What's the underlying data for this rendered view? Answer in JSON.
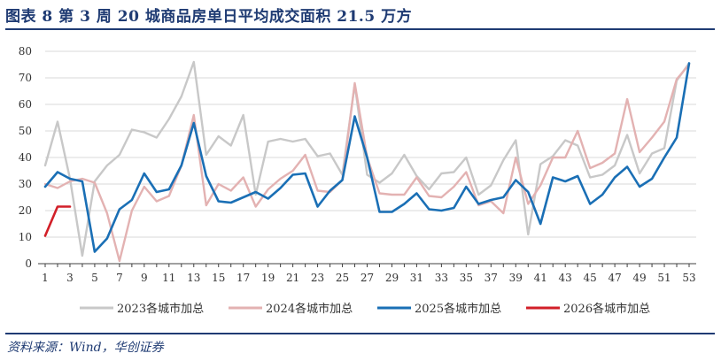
{
  "title": "图表 8   第 3 周 20 城商品房单日平均成交面积 21.5 万方",
  "source": "资料来源：Wind，华创证券",
  "colors": {
    "grid": "#d9d9d9",
    "axis": "#404040",
    "series": [
      "#c8c8c8",
      "#e3b2b2",
      "#1a6fb5",
      "#d21f28"
    ]
  },
  "chart_data": {
    "type": "line",
    "title": "第 3 周 20 城商品房单日平均成交面积 21.5 万方",
    "xlabel": "",
    "ylabel": "",
    "xlim": [
      1,
      53
    ],
    "ylim": [
      0,
      80
    ],
    "y_ticks": [
      0,
      10,
      20,
      30,
      40,
      50,
      60,
      70,
      80
    ],
    "x_ticks": [
      1,
      3,
      5,
      7,
      9,
      11,
      13,
      15,
      17,
      19,
      21,
      23,
      25,
      27,
      29,
      31,
      33,
      35,
      37,
      39,
      41,
      43,
      45,
      47,
      49,
      51,
      53
    ],
    "grid": "horizontal",
    "legend_position": "bottom",
    "series": [
      {
        "name": "2023各城市加总",
        "x_start": 1,
        "values": [
          37,
          53.5,
          32,
          3,
          31,
          37,
          41,
          50.5,
          49.5,
          47.5,
          54.5,
          63,
          76,
          41,
          48,
          44.5,
          56,
          26,
          46,
          47,
          46,
          47,
          40.5,
          41.5,
          33.5,
          67.5,
          33.5,
          30.5,
          34,
          41,
          33,
          28,
          34,
          34.5,
          40,
          26,
          29.5,
          39,
          46.5,
          11,
          37.5,
          40.5,
          46.5,
          44.5,
          32.5,
          33.5,
          37,
          48.5,
          34,
          41.5,
          43.5,
          69,
          75.5
        ]
      },
      {
        "name": "2024各城市加总",
        "x_start": 1,
        "values": [
          30,
          28.5,
          31,
          32,
          30.5,
          19,
          1,
          20,
          29,
          23.5,
          25.5,
          37,
          56,
          22,
          30,
          27.5,
          32.5,
          21.5,
          28,
          32,
          35,
          41,
          27.5,
          27,
          31.5,
          68,
          40,
          26.5,
          26,
          26,
          32.5,
          25.5,
          25,
          29,
          34.5,
          22,
          23.5,
          19,
          40,
          22.5,
          29.5,
          40,
          40,
          50,
          36,
          38,
          41.5,
          62,
          42,
          47.5,
          53.5,
          69.5,
          75
        ]
      },
      {
        "name": "2025各城市加总",
        "x_start": 1,
        "values": [
          29,
          34.5,
          32,
          31,
          4.5,
          9.5,
          20.5,
          24,
          34,
          27,
          28,
          37,
          53,
          33,
          23.5,
          23,
          25,
          27,
          24.5,
          28.5,
          33.5,
          34,
          21.5,
          27.5,
          31.5,
          55.5,
          40,
          19.5,
          19.5,
          22.5,
          26.5,
          20.5,
          20,
          21,
          29,
          22.5,
          24,
          25,
          31.5,
          27,
          15,
          32.5,
          31,
          33,
          22.5,
          26,
          32.5,
          36.5,
          29,
          32,
          40,
          47.5,
          75.5
        ]
      },
      {
        "name": "2026各城市加总",
        "x_start": 1,
        "values": [
          10.5,
          21.5,
          21.5
        ]
      }
    ]
  }
}
